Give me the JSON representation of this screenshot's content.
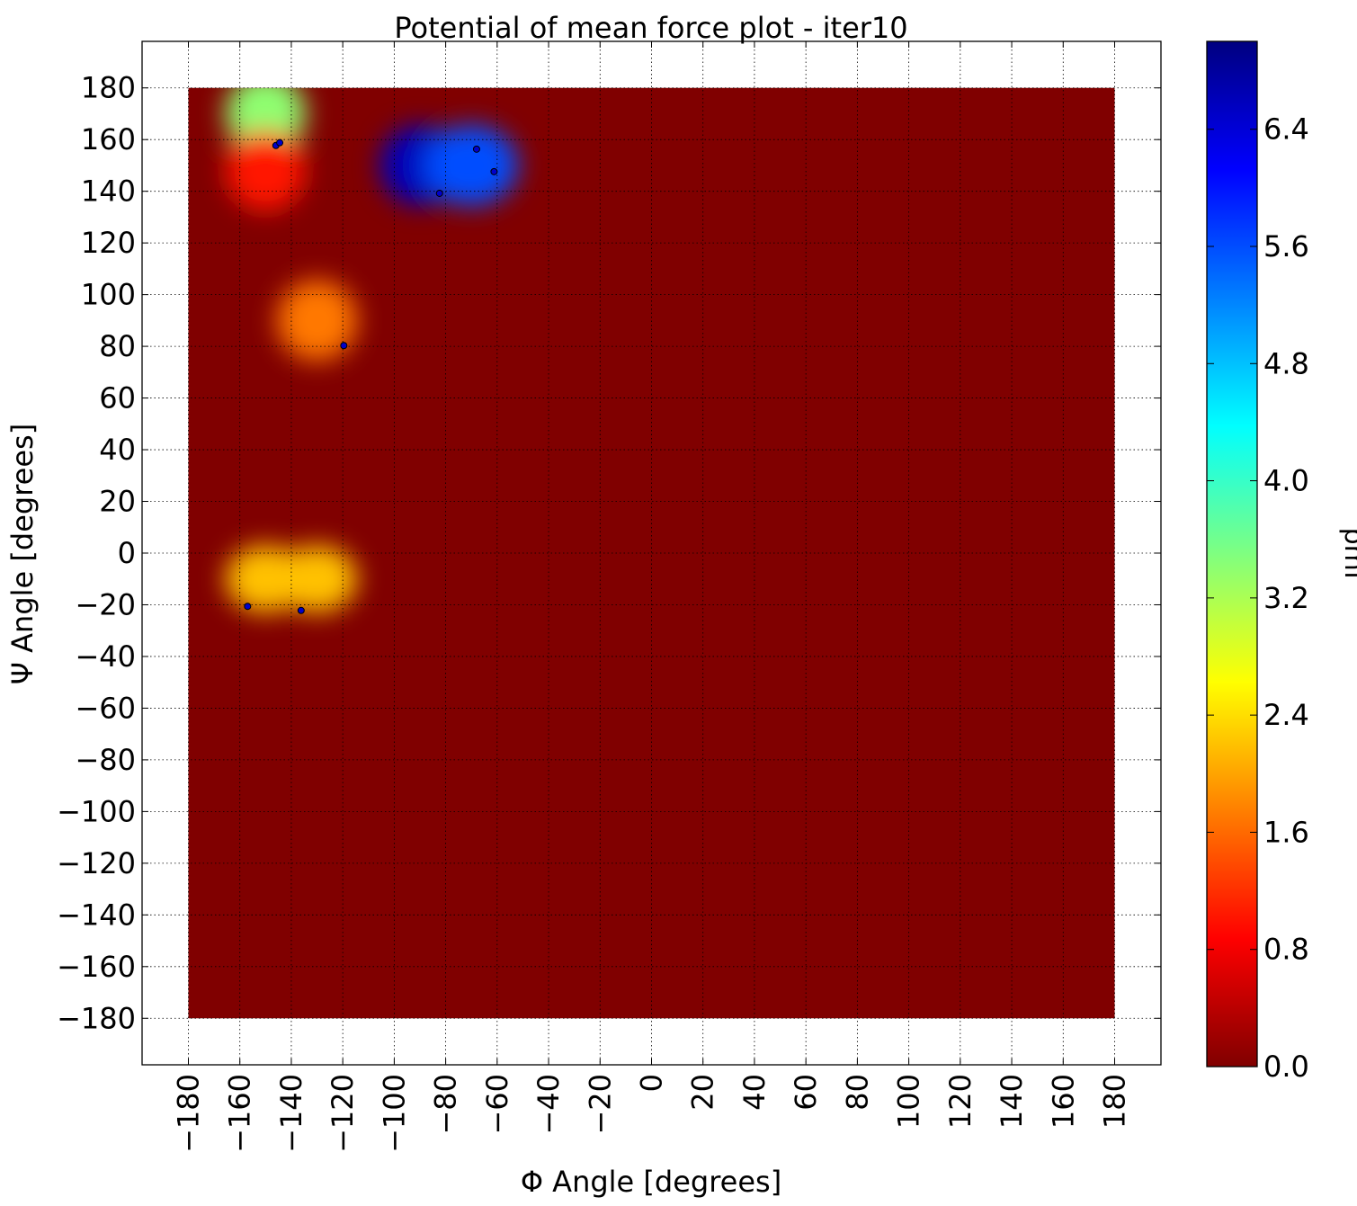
{
  "chart_data": {
    "type": "heatmap",
    "title": "Potential of mean force plot - iter10",
    "xlabel": "Φ Angle [degrees]",
    "ylabel": "Ψ Angle [degrees]",
    "colorbar_label": "pmf",
    "colormap": "jet",
    "xlim": [
      -198,
      198
    ],
    "ylim": [
      -198,
      198
    ],
    "data_extent": {
      "x": [
        -180,
        180
      ],
      "y": [
        -180,
        180
      ]
    },
    "grid": true,
    "x_ticks": [
      -180,
      -160,
      -140,
      -120,
      -100,
      -80,
      -60,
      -40,
      -20,
      0,
      20,
      40,
      60,
      80,
      100,
      120,
      140,
      160,
      180
    ],
    "x_tick_labels": [
      "−180",
      "−160",
      "−140",
      "−120",
      "−100",
      "−80",
      "−60",
      "−40",
      "−20",
      "0",
      "20",
      "40",
      "60",
      "80",
      "100",
      "120",
      "140",
      "160",
      "180"
    ],
    "y_ticks": [
      180,
      160,
      140,
      120,
      100,
      80,
      60,
      40,
      20,
      0,
      -20,
      -40,
      -60,
      -80,
      -100,
      -120,
      -140,
      -160,
      -180
    ],
    "y_tick_labels": [
      "180",
      "160",
      "140",
      "120",
      "100",
      "80",
      "60",
      "40",
      "20",
      "0",
      "−20",
      "−40",
      "−60",
      "−80",
      "−100",
      "−120",
      "−140",
      "−160",
      "−180"
    ],
    "colorbar_ticks": [
      0.0,
      0.8,
      1.6,
      2.4,
      3.2,
      4.0,
      4.8,
      5.6,
      6.4
    ],
    "colorbar_tick_labels": [
      "0.0",
      "0.8",
      "1.6",
      "2.4",
      "3.2",
      "4.0",
      "4.8",
      "5.6",
      "6.4"
    ],
    "colorbar_range": [
      0.0,
      7.0
    ],
    "background_value": 0.0,
    "hotspots": [
      {
        "x": -150,
        "y": 170,
        "value": 3.4,
        "sx": 6,
        "sy": 6
      },
      {
        "x": -150,
        "y": 148,
        "value": 1.0,
        "sx": 6,
        "sy": 6
      },
      {
        "x": -130,
        "y": 90,
        "value": 1.7,
        "sx": 6,
        "sy": 6
      },
      {
        "x": -150,
        "y": -10,
        "value": 2.2,
        "sx": 6,
        "sy": 5
      },
      {
        "x": -130,
        "y": -10,
        "value": 2.2,
        "sx": 6,
        "sy": 5
      },
      {
        "x": -90,
        "y": 150,
        "value": 6.6,
        "sx": 6,
        "sy": 6
      },
      {
        "x": -70,
        "y": 150,
        "value": 5.6,
        "sx": 7,
        "sy": 6
      }
    ],
    "points": [
      {
        "x": -146,
        "y": 157.7
      },
      {
        "x": -144.5,
        "y": 158.8
      },
      {
        "x": -68,
        "y": 156.3
      },
      {
        "x": -61.2,
        "y": 147.6
      },
      {
        "x": -82.4,
        "y": 139.2
      },
      {
        "x": -119.6,
        "y": 80.3
      },
      {
        "x": -157,
        "y": -20.6
      },
      {
        "x": -136.2,
        "y": -22.2
      }
    ]
  }
}
